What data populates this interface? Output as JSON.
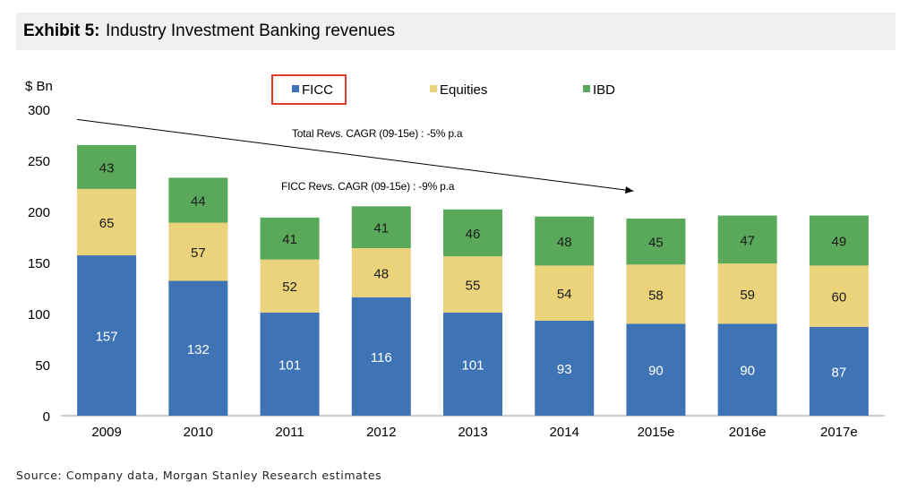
{
  "exhibit": {
    "label": "Exhibit 5:",
    "title": "Industry Investment Banking revenues"
  },
  "source": "Source: Company data, Morgan Stanley Research estimates",
  "chart_data": {
    "type": "bar",
    "stacked": true,
    "categories": [
      "2009",
      "2010",
      "2011",
      "2012",
      "2013",
      "2014",
      "2015e",
      "2016e",
      "2017e"
    ],
    "series": [
      {
        "name": "FICC",
        "color": "#3e74b6",
        "values": [
          157,
          132,
          101,
          116,
          101,
          93,
          90,
          90,
          87
        ]
      },
      {
        "name": "Equities",
        "color": "#ebd37c",
        "values": [
          65,
          57,
          52,
          48,
          55,
          54,
          58,
          59,
          60
        ]
      },
      {
        "name": "IBD",
        "color": "#5aa85a",
        "values": [
          43,
          44,
          41,
          41,
          46,
          48,
          45,
          47,
          49
        ]
      }
    ],
    "ylabel": "$ Bn",
    "ylim": [
      0,
      300
    ],
    "yticks": [
      0,
      50,
      100,
      150,
      200,
      250,
      300
    ],
    "grid": false,
    "legend": {
      "position": "top",
      "highlighted": "FICC",
      "highlight_color": "#e03a2a"
    },
    "annotations": [
      {
        "text": "Total Revs. CAGR (09-15e) : -5% p.a"
      },
      {
        "text": "FICC Revs. CAGR (09-15e) : -9% p.a"
      }
    ],
    "trend_arrow": {
      "from_category": "2009",
      "to_category": "2015e",
      "from_value": 290,
      "to_value": 220
    }
  }
}
